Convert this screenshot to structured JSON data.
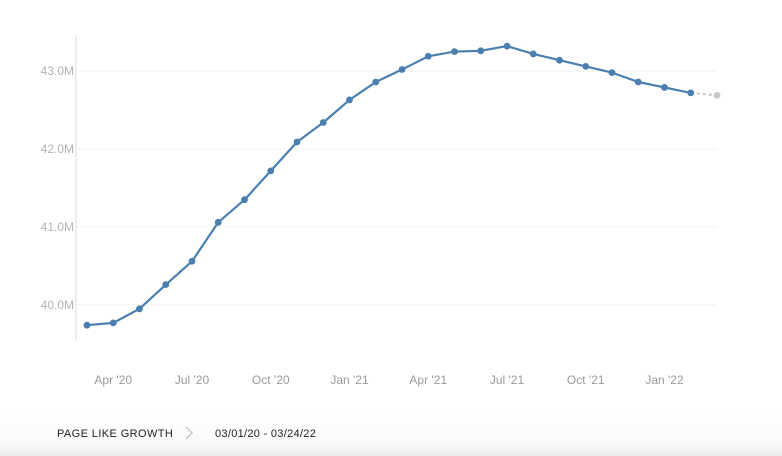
{
  "chart_data": {
    "type": "line",
    "title": "",
    "xlabel": "",
    "ylabel": "",
    "ylim": [
      39.55,
      43.45
    ],
    "y_unit_suffix": "M",
    "yticks": [
      40.0,
      41.0,
      42.0,
      43.0
    ],
    "ytick_labels": [
      "40.0M",
      "41.0M",
      "42.0M",
      "43.0M"
    ],
    "xticks": [
      "Apr '20",
      "Jul '20",
      "Oct '20",
      "Jan '21",
      "Apr '21",
      "Jul '21",
      "Oct '21",
      "Jan '22"
    ],
    "grid": true,
    "series": [
      {
        "color": "#4a7fb0",
        "x": [
          "2020-03",
          "2020-04",
          "2020-05",
          "2020-06",
          "2020-07",
          "2020-08",
          "2020-09",
          "2020-10",
          "2020-11",
          "2020-12",
          "2021-01",
          "2021-02",
          "2021-03",
          "2021-04",
          "2021-05",
          "2021-06",
          "2021-07",
          "2021-08",
          "2021-09",
          "2021-10",
          "2021-11",
          "2021-12",
          "2022-01",
          "2022-02"
        ],
        "values": [
          39.74,
          39.77,
          39.95,
          40.26,
          40.56,
          41.06,
          41.35,
          41.72,
          42.09,
          42.34,
          42.63,
          42.86,
          43.02,
          43.19,
          43.25,
          43.26,
          43.32,
          43.22,
          43.14,
          43.06,
          42.98,
          42.86,
          42.79,
          42.72
        ]
      },
      {
        "color": "#c8c8c8",
        "style": "dashed",
        "x": [
          "2022-02",
          "2022-03"
        ],
        "values": [
          42.72,
          42.69
        ]
      }
    ]
  },
  "footer": {
    "metric_label": "PAGE LIKE GROWTH",
    "separator_icon": "chevron-right-icon",
    "date_range": "03/01/20 - 03/24/22"
  }
}
